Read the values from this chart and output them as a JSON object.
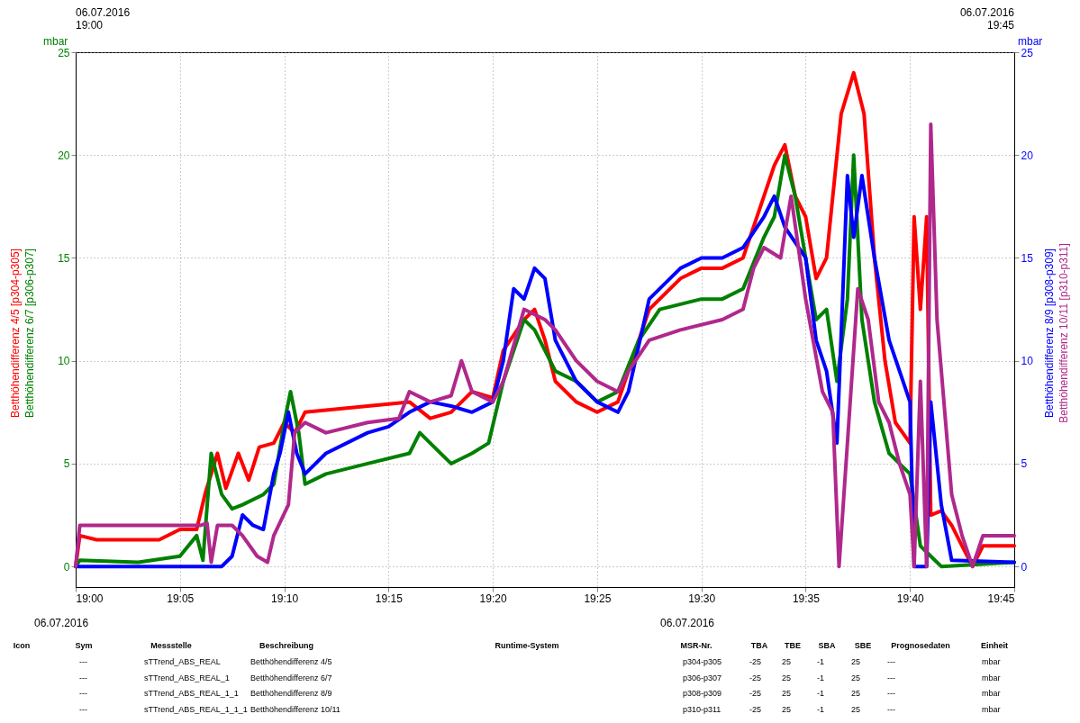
{
  "chart_data": {
    "type": "line",
    "ylabel": "mbar",
    "y2label": "mbar",
    "xlim": [
      19,
      19.75
    ],
    "xticks": [
      {
        "value": 19,
        "label": "19:00"
      },
      {
        "value": 19.0833,
        "label": "19:05"
      },
      {
        "value": 19.1667,
        "label": "19:10"
      },
      {
        "value": 19.25,
        "label": "19:15"
      },
      {
        "value": 19.3333,
        "label": "19:20"
      },
      {
        "value": 19.4167,
        "label": "19:25"
      },
      {
        "value": 19.5,
        "label": "19:30"
      },
      {
        "value": 19.5833,
        "label": "19:35"
      },
      {
        "value": 19.6667,
        "label": "19:40"
      },
      {
        "value": 19.75,
        "label": "19:45"
      }
    ],
    "ylim": [
      -1,
      25
    ],
    "yticks": [
      0,
      5,
      10,
      15,
      20,
      25
    ],
    "y2lim": [
      -1,
      25
    ],
    "y2ticks": [
      0,
      5,
      10,
      15,
      20,
      25
    ],
    "grid": true,
    "line_style": "solid",
    "series": [
      {
        "name": "Betthöhendifferenz 4/5 [p304-p305]",
        "color": "#ff0000",
        "axis": "y",
        "x": [
          19,
          19.0033,
          19.0167,
          19.0667,
          19.0833,
          19.0967,
          19.1033,
          19.1133,
          19.12,
          19.13,
          19.1383,
          19.1467,
          19.1583,
          19.1667,
          19.175,
          19.1833,
          19.2333,
          19.2667,
          19.2833,
          19.3,
          19.3167,
          19.3333,
          19.3417,
          19.3583,
          19.3667,
          19.375,
          19.3833,
          19.4,
          19.4167,
          19.4333,
          19.4417,
          19.4583,
          19.4833,
          19.5,
          19.5167,
          19.5333,
          19.55,
          19.5583,
          19.5667,
          19.575,
          19.5833,
          19.5917,
          19.6,
          19.6117,
          19.6217,
          19.63,
          19.6383,
          19.6467,
          19.655,
          19.6667,
          19.67,
          19.675,
          19.68,
          19.6833,
          19.6917,
          19.7,
          19.7083,
          19.7167,
          19.725,
          19.75
        ],
        "values": [
          0,
          1.5,
          1.3,
          1.3,
          1.8,
          1.8,
          3.5,
          5.5,
          3.8,
          5.5,
          4.2,
          5.8,
          6,
          7,
          6.5,
          7.5,
          7.8,
          8,
          7.2,
          7.5,
          8.5,
          8.2,
          10.5,
          12,
          12.5,
          11,
          9,
          8,
          7.5,
          8,
          9.5,
          12.5,
          14,
          14.5,
          14.5,
          15,
          18,
          19.5,
          20.5,
          18,
          17,
          14,
          15,
          22,
          24,
          22,
          15,
          10,
          7,
          6,
          17,
          12.5,
          17,
          2.5,
          2.7,
          2,
          1,
          0,
          1,
          1
        ]
      },
      {
        "name": "Betthöhendifferenz 6/7 [p306-p307]",
        "color": "#008000",
        "axis": "y",
        "x": [
          19,
          19.0033,
          19.05,
          19.0833,
          19.0967,
          19.1017,
          19.1083,
          19.1167,
          19.125,
          19.1333,
          19.15,
          19.1583,
          19.1667,
          19.1717,
          19.1783,
          19.1833,
          19.2,
          19.2333,
          19.2667,
          19.275,
          19.2833,
          19.3,
          19.3167,
          19.33,
          19.3417,
          19.3583,
          19.3667,
          19.3833,
          19.4,
          19.4167,
          19.4333,
          19.45,
          19.4667,
          19.5,
          19.5167,
          19.5333,
          19.55,
          19.5583,
          19.5667,
          19.575,
          19.5833,
          19.5917,
          19.6,
          19.6083,
          19.6167,
          19.6217,
          19.6283,
          19.6383,
          19.65,
          19.6667,
          19.675,
          19.6833,
          19.6917,
          19.75
        ],
        "values": [
          0,
          0.3,
          0.2,
          0.5,
          1.5,
          0.3,
          5.5,
          3.5,
          2.8,
          3,
          3.5,
          4,
          7,
          8.5,
          6.5,
          4,
          4.5,
          5,
          5.5,
          6.5,
          6,
          5,
          5.5,
          6,
          9,
          12,
          11.5,
          9.5,
          9,
          8,
          8.5,
          11,
          12.5,
          13,
          13,
          13.5,
          16,
          17,
          20,
          18,
          15,
          12,
          12.5,
          9,
          13,
          20,
          12,
          8,
          5.5,
          4.5,
          1,
          0.5,
          0,
          0.2
        ]
      },
      {
        "name": "Betthöhendifferenz 8/9 [p308-p309]",
        "color": "#0000ff",
        "axis": "y2",
        "x": [
          19,
          19.0333,
          19.1,
          19.1167,
          19.125,
          19.1333,
          19.1417,
          19.15,
          19.1583,
          19.1633,
          19.17,
          19.1767,
          19.1833,
          19.2,
          19.2333,
          19.25,
          19.2667,
          19.2833,
          19.3,
          19.3167,
          19.3333,
          19.3417,
          19.35,
          19.3583,
          19.3667,
          19.375,
          19.3833,
          19.4,
          19.4167,
          19.4333,
          19.4417,
          19.4583,
          19.4833,
          19.5,
          19.5167,
          19.5333,
          19.55,
          19.5583,
          19.5667,
          19.5833,
          19.5917,
          19.6,
          19.6083,
          19.6167,
          19.6217,
          19.6283,
          19.6383,
          19.65,
          19.6667,
          19.67,
          19.68,
          19.6833,
          19.6917,
          19.7,
          19.75
        ],
        "values": [
          0,
          0,
          0,
          0,
          0.5,
          2.5,
          2,
          1.8,
          4.5,
          5.5,
          7.5,
          5.5,
          4.5,
          5.5,
          6.5,
          6.8,
          7.5,
          8,
          7.8,
          7.5,
          8,
          10,
          13.5,
          13,
          14.5,
          14,
          11,
          9,
          8,
          7.5,
          8.5,
          13,
          14.5,
          15,
          15,
          15.5,
          17,
          18,
          16.5,
          15,
          11,
          9.5,
          6,
          19,
          16,
          19,
          15,
          11,
          8,
          0,
          0,
          8,
          3,
          0.3,
          0.2
        ]
      },
      {
        "name": "Betthöhendifferenz 10/11 [p310-p311]",
        "color": "#b0288c",
        "axis": "y2",
        "x": [
          19,
          19.0033,
          19.1,
          19.105,
          19.1083,
          19.1133,
          19.125,
          19.1333,
          19.145,
          19.1533,
          19.1583,
          19.17,
          19.175,
          19.1833,
          19.2,
          19.2333,
          19.2583,
          19.2667,
          19.2833,
          19.3,
          19.3083,
          19.3167,
          19.3333,
          19.3417,
          19.3583,
          19.375,
          19.3833,
          19.4,
          19.4167,
          19.4333,
          19.4417,
          19.4583,
          19.4833,
          19.5167,
          19.5333,
          19.5417,
          19.55,
          19.5633,
          19.5717,
          19.5833,
          19.5967,
          19.605,
          19.61,
          19.6167,
          19.625,
          19.6333,
          19.6417,
          19.65,
          19.6583,
          19.6667,
          19.67,
          19.675,
          19.68,
          19.6833,
          19.6883,
          19.7,
          19.7083,
          19.7167,
          19.725,
          19.75
        ],
        "values": [
          0,
          2,
          2,
          2.1,
          0.2,
          2,
          2,
          1.5,
          0.5,
          0.2,
          1.5,
          3,
          6.5,
          7,
          6.5,
          7,
          7.2,
          8.5,
          8,
          8.3,
          10,
          8.5,
          8,
          9,
          12.5,
          12,
          11.5,
          10,
          9,
          8.5,
          9.5,
          11,
          11.5,
          12,
          12.5,
          14.5,
          15.5,
          15,
          18,
          13,
          8.5,
          7.5,
          0,
          6,
          13.5,
          12,
          8,
          7,
          5,
          3.5,
          0,
          9,
          0,
          21.5,
          12,
          3.5,
          1.5,
          0,
          1.5,
          1.5
        ]
      }
    ],
    "annotations": [
      "06.07.2016 19:00",
      "06.07.2016 19:45",
      "06.07.2016",
      "06.07.2016",
      "Icon",
      "Sym",
      "Messstelle",
      "Beschreibung",
      "Runtime-System",
      "MSR-Nr.",
      "TBA",
      "TBE",
      "SBA",
      "SBE",
      "Prognosedaten",
      "Einheit",
      "---",
      "sTTrend_ABS_REAL",
      "Betthöhendifferenz 4/5",
      "p304-p305",
      "-25",
      "25",
      "-1",
      "25",
      "---",
      "mbar",
      "---",
      "sTTrend_ABS_REAL_1",
      "Betthöhendifferenz 6/7",
      "p306-p307",
      "-25",
      "25",
      "-1",
      "25",
      "---",
      "mbar",
      "---",
      "sTTrend_ABS_REAL_1_1",
      "Betthöhendifferenz 8/9",
      "p308-p309",
      "-25",
      "25",
      "-1",
      "25",
      "---",
      "mbar",
      "---",
      "sTTrend_ABS_REAL_1_1_1",
      "Betthöhendifferenz 10/11",
      "p310-p311",
      "-25",
      "25",
      "-1",
      "25",
      "---",
      "mbar"
    ]
  }
}
